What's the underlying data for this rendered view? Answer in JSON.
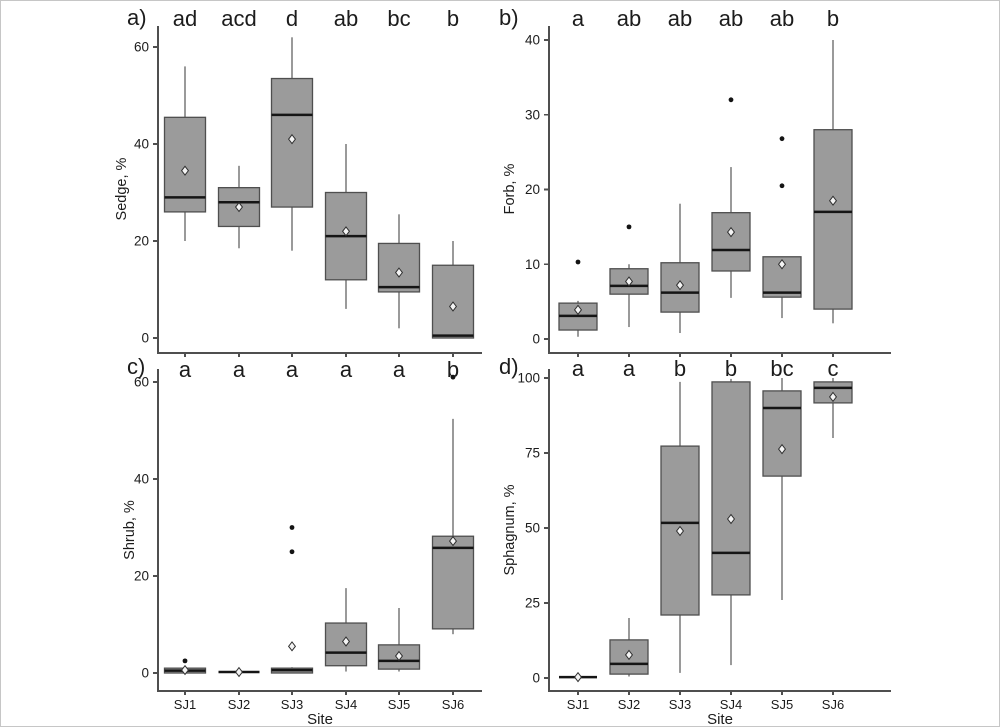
{
  "figure": {
    "sites": [
      "SJ1",
      "SJ2",
      "SJ3",
      "SJ4",
      "SJ5",
      "SJ6"
    ],
    "x_axis_label": "Site",
    "colors": {
      "background": "#ffffff",
      "box_fill": "#9b9b9b",
      "box_stroke": "#4f4f4f",
      "median": "#151515",
      "whisker": "#6e6e6e",
      "axis": "#4f4f4f",
      "text": "#1c1c1c",
      "mean_fill": "#f4f4f4",
      "mean_stroke": "#2f2f2f",
      "outlier": "#141414"
    }
  },
  "chart_data": [
    {
      "type": "boxplot",
      "panel_label": "a)",
      "ylabel": "Sedge, %",
      "yticks": [
        0,
        20,
        40,
        60
      ],
      "ylim": [
        0,
        63
      ],
      "categories": [
        "SJ1",
        "SJ2",
        "SJ3",
        "SJ4",
        "SJ5",
        "SJ6"
      ],
      "significance_letters": [
        "ad",
        "acd",
        "d",
        "ab",
        "bc",
        "b"
      ],
      "stats": [
        {
          "site": "SJ1",
          "whisker_low": 20,
          "q1": 26,
          "median": 29,
          "q3": 45.5,
          "whisker_high": 56,
          "mean": 34.5,
          "outliers": []
        },
        {
          "site": "SJ2",
          "whisker_low": 18.5,
          "q1": 23,
          "median": 28,
          "q3": 31,
          "whisker_high": 35.5,
          "mean": 27,
          "outliers": []
        },
        {
          "site": "SJ3",
          "whisker_low": 18,
          "q1": 27,
          "median": 46,
          "q3": 53.5,
          "whisker_high": 62,
          "mean": 41,
          "outliers": []
        },
        {
          "site": "SJ4",
          "whisker_low": 6,
          "q1": 12,
          "median": 21,
          "q3": 30,
          "whisker_high": 40,
          "mean": 22,
          "outliers": []
        },
        {
          "site": "SJ5",
          "whisker_low": 2,
          "q1": 9.5,
          "median": 10.5,
          "q3": 19.5,
          "whisker_high": 25.5,
          "mean": 13.5,
          "outliers": []
        },
        {
          "site": "SJ6",
          "whisker_low": 0,
          "q1": 0,
          "median": 0.5,
          "q3": 15,
          "whisker_high": 20,
          "mean": 6.5,
          "outliers": []
        }
      ]
    },
    {
      "type": "boxplot",
      "panel_label": "b)",
      "ylabel": "Forb, %",
      "yticks": [
        0,
        10,
        20,
        30,
        40
      ],
      "ylim": [
        0,
        42
      ],
      "categories": [
        "SJ1",
        "SJ2",
        "SJ3",
        "SJ4",
        "SJ5",
        "SJ6"
      ],
      "significance_letters": [
        "a",
        "ab",
        "ab",
        "ab",
        "ab",
        "b"
      ],
      "stats": [
        {
          "site": "SJ1",
          "whisker_low": 0.3,
          "q1": 1.2,
          "median": 3.1,
          "q3": 4.8,
          "whisker_high": 5.1,
          "mean": 3.9,
          "outliers": [
            10.3
          ]
        },
        {
          "site": "SJ2",
          "whisker_low": 1.6,
          "q1": 6,
          "median": 7.1,
          "q3": 9.4,
          "whisker_high": 10,
          "mean": 7.7,
          "outliers": [
            15
          ]
        },
        {
          "site": "SJ3",
          "whisker_low": 0.8,
          "q1": 3.6,
          "median": 6.2,
          "q3": 10.2,
          "whisker_high": 18.1,
          "mean": 7.2,
          "outliers": []
        },
        {
          "site": "SJ4",
          "whisker_low": 5.5,
          "q1": 9.1,
          "median": 11.9,
          "q3": 16.9,
          "whisker_high": 23,
          "mean": 14.3,
          "outliers": [
            32
          ]
        },
        {
          "site": "SJ5",
          "whisker_low": 2.8,
          "q1": 5.6,
          "median": 6.2,
          "q3": 11,
          "whisker_high": 11,
          "mean": 10,
          "outliers": [
            20.5,
            26.8
          ]
        },
        {
          "site": "SJ6",
          "whisker_low": 2.1,
          "q1": 4,
          "median": 17,
          "q3": 28,
          "whisker_high": 40,
          "mean": 18.5,
          "outliers": []
        }
      ]
    },
    {
      "type": "boxplot",
      "panel_label": "c)",
      "ylabel": "Shrub, %",
      "xlabel": "Site",
      "yticks": [
        0,
        20,
        40,
        60
      ],
      "ylim": [
        0,
        63
      ],
      "categories": [
        "SJ1",
        "SJ2",
        "SJ3",
        "SJ4",
        "SJ5",
        "SJ6"
      ],
      "significance_letters": [
        "a",
        "a",
        "a",
        "a",
        "a",
        "b"
      ],
      "stats": [
        {
          "site": "SJ1",
          "whisker_low": 0,
          "q1": 0,
          "median": 0.5,
          "q3": 1,
          "whisker_high": 1.2,
          "mean": 0.6,
          "outliers": [
            2.5
          ]
        },
        {
          "site": "SJ2",
          "whisker_low": 0.2,
          "q1": 0.2,
          "median": 0.2,
          "q3": 0.2,
          "whisker_high": 0.2,
          "mean": 0.2,
          "outliers": []
        },
        {
          "site": "SJ3",
          "whisker_low": 0,
          "q1": 0,
          "median": 0.6,
          "q3": 1,
          "whisker_high": 1.2,
          "mean": 5.5,
          "outliers": [
            25,
            30
          ]
        },
        {
          "site": "SJ4",
          "whisker_low": 0.3,
          "q1": 1.5,
          "median": 4.2,
          "q3": 10.3,
          "whisker_high": 17.5,
          "mean": 6.5,
          "outliers": []
        },
        {
          "site": "SJ5",
          "whisker_low": 0.3,
          "q1": 0.8,
          "median": 2.5,
          "q3": 5.8,
          "whisker_high": 13.4,
          "mean": 3.5,
          "outliers": []
        },
        {
          "site": "SJ6",
          "whisker_low": 8,
          "q1": 9.1,
          "median": 25.8,
          "q3": 28.2,
          "whisker_high": 52.4,
          "mean": 27.2,
          "outliers": [
            61
          ]
        }
      ]
    },
    {
      "type": "boxplot",
      "panel_label": "d)",
      "ylabel": "Sphagnum, %",
      "xlabel": "Site",
      "yticks": [
        0,
        25,
        50,
        75,
        100
      ],
      "ylim": [
        0,
        104
      ],
      "categories": [
        "SJ1",
        "SJ2",
        "SJ3",
        "SJ4",
        "SJ5",
        "SJ6"
      ],
      "significance_letters": [
        "a",
        "a",
        "b",
        "b",
        "bc",
        "c"
      ],
      "stats": [
        {
          "site": "SJ1",
          "whisker_low": 0.3,
          "q1": 0.3,
          "median": 0.3,
          "q3": 0.3,
          "whisker_high": 0.3,
          "mean": 0.3,
          "outliers": []
        },
        {
          "site": "SJ2",
          "whisker_low": 0.5,
          "q1": 1.3,
          "median": 4.7,
          "q3": 12.7,
          "whisker_high": 20,
          "mean": 7.7,
          "outliers": []
        },
        {
          "site": "SJ3",
          "whisker_low": 1.7,
          "q1": 21,
          "median": 51.7,
          "q3": 77.3,
          "whisker_high": 98.7,
          "mean": 49,
          "outliers": []
        },
        {
          "site": "SJ4",
          "whisker_low": 4.3,
          "q1": 27.7,
          "median": 41.7,
          "q3": 98.7,
          "whisker_high": 99.7,
          "mean": 53,
          "outliers": []
        },
        {
          "site": "SJ5",
          "whisker_low": 26,
          "q1": 67.3,
          "median": 90,
          "q3": 95.7,
          "whisker_high": 100,
          "mean": 76.3,
          "outliers": []
        },
        {
          "site": "SJ6",
          "whisker_low": 80,
          "q1": 91.7,
          "median": 96.7,
          "q3": 98.7,
          "whisker_high": 100,
          "mean": 93.7,
          "outliers": []
        }
      ]
    }
  ]
}
